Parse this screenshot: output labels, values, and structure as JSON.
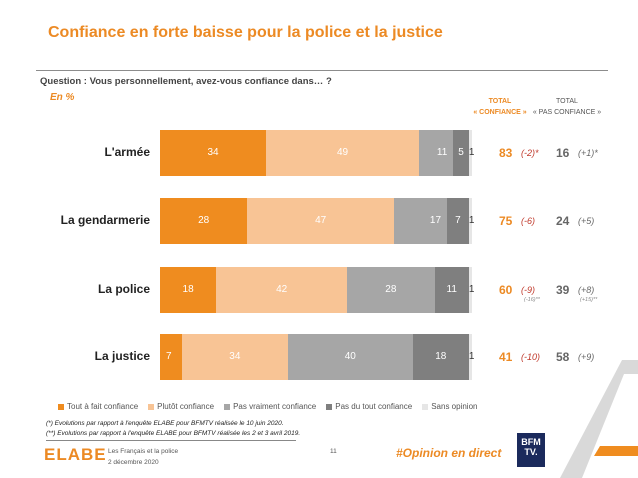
{
  "title": "Confiance en forte baisse pour la police et la justice",
  "question": "Question : Vous personnellement, avez-vous confiance dans… ?",
  "unit": "En %",
  "headers": {
    "confiance_line1": "TOTAL",
    "confiance_line2": "« CONFIANCE »",
    "pas_line1": "TOTAL",
    "pas_line2": "« PAS CONFIANCE »"
  },
  "chart_data": {
    "type": "bar",
    "stacked": true,
    "orientation": "horizontal",
    "categories": [
      "L'armée",
      "La gendarmerie",
      "La police",
      "La justice"
    ],
    "series": [
      {
        "name": "Tout à fait confiance",
        "values": [
          34,
          28,
          18,
          7
        ],
        "color": "#ef8c1f"
      },
      {
        "name": "Plutôt confiance",
        "values": [
          49,
          47,
          42,
          34
        ],
        "color": "#f8c495"
      },
      {
        "name": "Pas vraiment confiance",
        "values": [
          11,
          17,
          28,
          40
        ],
        "color": "#a6a6a6"
      },
      {
        "name": "Pas du tout confiance",
        "values": [
          5,
          7,
          11,
          18
        ],
        "color": "#7f7f7f"
      },
      {
        "name": "Sans opinion",
        "values": [
          1,
          1,
          1,
          1
        ],
        "color": "#e6e6e6"
      }
    ],
    "xlim": [
      0,
      100
    ],
    "totals": [
      {
        "confiance": "83",
        "evo_confiance": "(-2)*",
        "evo_confiance_2": "",
        "pas_confiance": "16",
        "evo_pas": "(+1)*",
        "evo_pas_2": ""
      },
      {
        "confiance": "75",
        "evo_confiance": "(-6)",
        "evo_confiance_2": "",
        "pas_confiance": "24",
        "evo_pas": "(+5)",
        "evo_pas_2": ""
      },
      {
        "confiance": "60",
        "evo_confiance": "(-9)",
        "evo_confiance_2": "(-16)**",
        "pas_confiance": "39",
        "evo_pas": "(+8)",
        "evo_pas_2": "(+15)**"
      },
      {
        "confiance": "41",
        "evo_confiance": "(-10)",
        "evo_confiance_2": "",
        "pas_confiance": "58",
        "evo_pas": "(+9)",
        "evo_pas_2": ""
      }
    ],
    "legend_position": "bottom"
  },
  "notes": [
    "(*) Evolutions par rapport à l'enquête ELABE pour BFMTV réalisée le 10 juin 2020.",
    "(**) Evolutions par rapport à l'enquête ELABE pour BFMTV réalisée les 2 et 3 avril 2019."
  ],
  "footer": {
    "logo": "ELABE",
    "line1": "Les Français et la police",
    "line2": "2 décembre 2020",
    "page": "11",
    "hashtag": "#Opinion en direct",
    "bfm_line1": "BFM",
    "bfm_line2": "TV."
  }
}
